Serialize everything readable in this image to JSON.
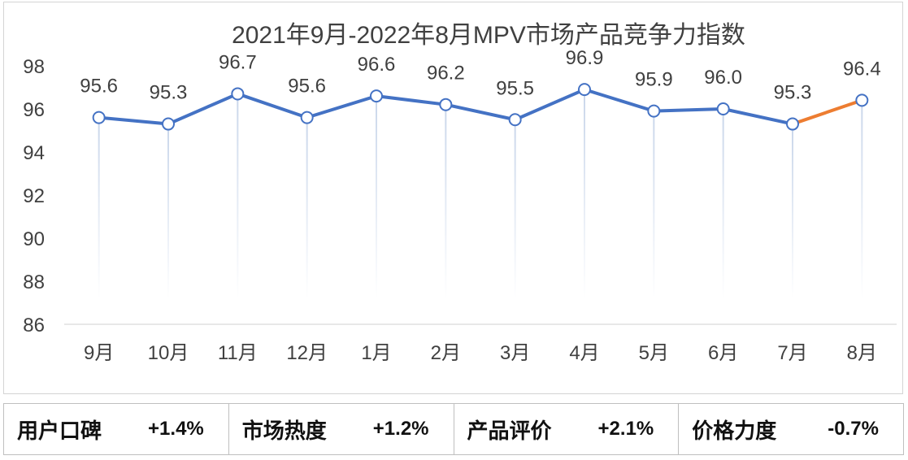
{
  "chart_data": {
    "type": "line",
    "title": "2021年9月-2022年8月MPV市场产品竞争力指数",
    "categories": [
      "9月",
      "10月",
      "11月",
      "12月",
      "1月",
      "2月",
      "3月",
      "4月",
      "5月",
      "6月",
      "7月",
      "8月"
    ],
    "series": [
      {
        "name": "MPV市场产品竞争力指数",
        "values": [
          95.6,
          95.3,
          96.7,
          95.6,
          96.6,
          96.2,
          95.5,
          96.9,
          95.9,
          96.0,
          95.3,
          96.4
        ]
      }
    ],
    "data_labels": [
      "95.6",
      "95.3",
      "96.7",
      "95.6",
      "96.6",
      "96.2",
      "95.5",
      "96.9",
      "95.9",
      "96.0",
      "95.3",
      "96.4"
    ],
    "ylim": [
      86,
      98
    ],
    "yticks": [
      98,
      96,
      94,
      92,
      90,
      88,
      86
    ],
    "xlabel": "",
    "ylabel": "",
    "highlight_from_index": 10,
    "colors": {
      "main": "#4472C4",
      "highlight": "#ED7D31",
      "drop": "#C9D6EA",
      "text": "#404040"
    }
  },
  "metrics": [
    {
      "label": "用户口碑",
      "value": "+1.4%"
    },
    {
      "label": "市场热度",
      "value": "+1.2%"
    },
    {
      "label": "产品评价",
      "value": "+2.1%"
    },
    {
      "label": "价格力度",
      "value": "-0.7%"
    }
  ]
}
